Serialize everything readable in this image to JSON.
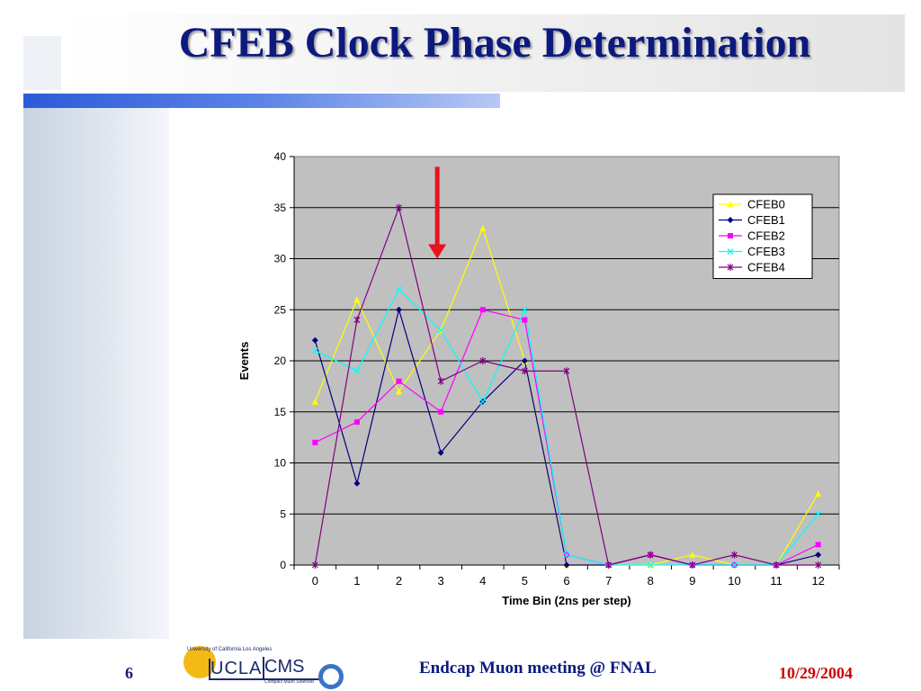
{
  "slide": {
    "title": "CFEB Clock Phase Determination",
    "page_number": "6",
    "meeting": "Endcap Muon meeting @ FNAL",
    "date": "10/29/2004"
  },
  "logo": {
    "university_text": "University of California Los Angeles",
    "ucla": "UCLA",
    "cms": "CMS",
    "cms_subtitle": "Compact Muon Solenoid"
  },
  "colors": {
    "title": "#0c1a7e",
    "date": "#cc0000",
    "plot_area": "#c0c0c0",
    "arrow": "#e8141c"
  },
  "chart_data": {
    "type": "line",
    "title": "",
    "xlabel": "Time Bin (2ns per step)",
    "ylabel": "Events",
    "x": [
      0,
      1,
      2,
      3,
      4,
      5,
      6,
      7,
      8,
      9,
      10,
      11,
      12
    ],
    "ylim": [
      0,
      40
    ],
    "yticks": [
      0,
      5,
      10,
      15,
      20,
      25,
      30,
      35,
      40
    ],
    "grid": "horizontal",
    "legend_position": "top-right",
    "annotation": {
      "type": "arrow",
      "x": 3,
      "y_from": 39,
      "y_to": 30,
      "color": "#e8141c"
    },
    "series": [
      {
        "name": "CFEB0",
        "color": "#ffff00",
        "marker": "triangle",
        "values": [
          16,
          26,
          17,
          23,
          33,
          20,
          0,
          0,
          0,
          1,
          0,
          0,
          7
        ]
      },
      {
        "name": "CFEB1",
        "color": "#000080",
        "marker": "diamond",
        "values": [
          22,
          8,
          25,
          11,
          16,
          20,
          0,
          0,
          1,
          0,
          0,
          0,
          1
        ]
      },
      {
        "name": "CFEB2",
        "color": "#ff00ff",
        "marker": "square",
        "values": [
          12,
          14,
          18,
          15,
          25,
          24,
          1,
          0,
          1,
          0,
          0,
          0,
          2
        ]
      },
      {
        "name": "CFEB3",
        "color": "#00ffff",
        "marker": "x",
        "values": [
          21,
          19,
          27,
          23,
          16,
          25,
          1,
          0,
          0,
          0,
          0,
          0,
          5
        ]
      },
      {
        "name": "CFEB4",
        "color": "#800080",
        "marker": "star",
        "values": [
          0,
          24,
          35,
          18,
          20,
          19,
          19,
          0,
          1,
          0,
          1,
          0,
          0
        ]
      }
    ]
  }
}
